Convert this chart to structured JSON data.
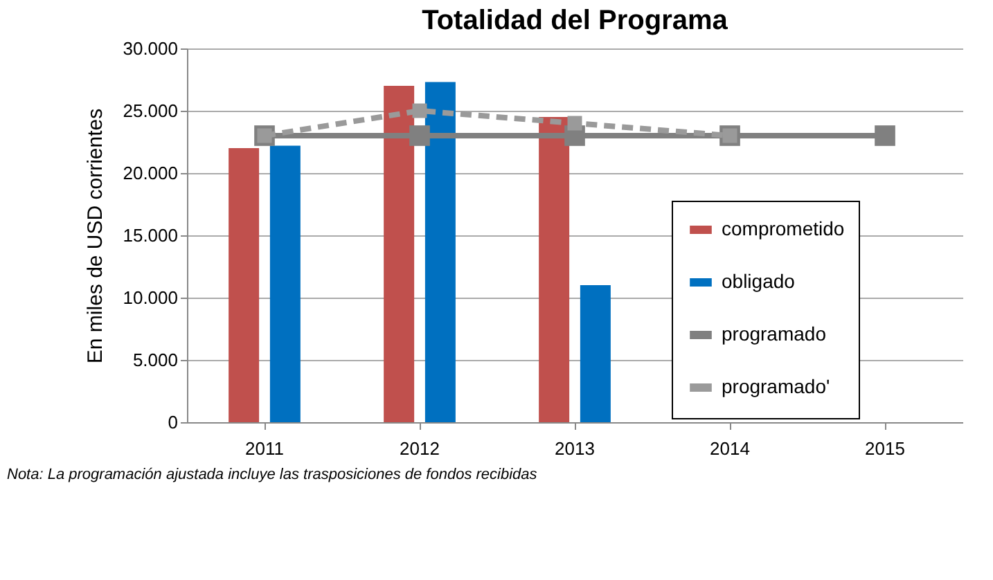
{
  "chart_data": {
    "type": "bar",
    "title": "Totalidad del Programa",
    "ylabel": "En miles de USD corrientes",
    "categories": [
      "2011",
      "2012",
      "2013",
      "2014",
      "2015"
    ],
    "series": [
      {
        "name": "comprometido",
        "color": "#c0504d",
        "values": [
          22000,
          27000,
          24500,
          null,
          null
        ]
      },
      {
        "name": "obligado",
        "color": "#0070c0",
        "values": [
          22200,
          27300,
          11000,
          null,
          null
        ]
      },
      {
        "name": "programado",
        "type": "line",
        "color": "#808080",
        "marker": "square",
        "line_style": "solid",
        "values": [
          23000,
          23000,
          23000,
          23000,
          23000
        ]
      },
      {
        "name": "programado'",
        "type": "line",
        "color": "#9a9a9a",
        "marker": "square",
        "line_style": "dashed",
        "values": [
          23000,
          25000,
          24000,
          23000,
          null
        ]
      }
    ],
    "ylim": [
      0,
      30000
    ],
    "yticks": [
      {
        "value": 0,
        "label": "0"
      },
      {
        "value": 5000,
        "label": "5.000"
      },
      {
        "value": 10000,
        "label": "10.000"
      },
      {
        "value": 15000,
        "label": "15.000"
      },
      {
        "value": 20000,
        "label": "20.000"
      },
      {
        "value": 25000,
        "label": "25.000"
      },
      {
        "value": 30000,
        "label": "30.000"
      }
    ],
    "grid": "y",
    "legend": "bottom right",
    "annotations": [
      "Nota: La programación ajustada incluye las trasposiciones de fondos recibidas"
    ]
  }
}
